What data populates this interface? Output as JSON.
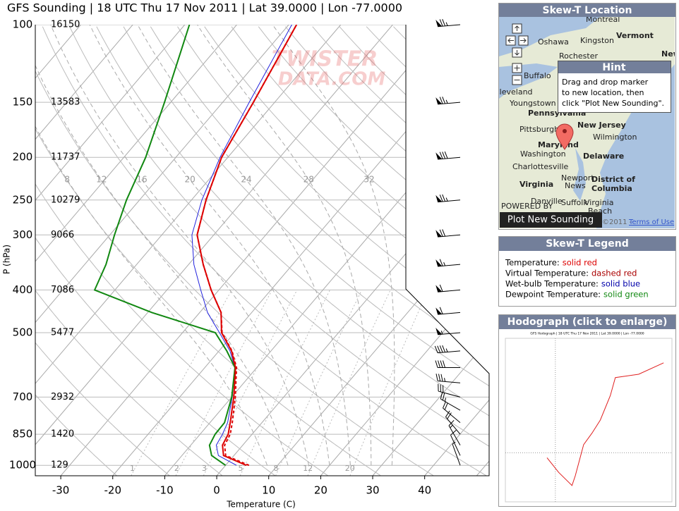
{
  "chart_data": {
    "type": "skewt",
    "title": "GFS Sounding | 18 UTC Thu 17 Nov 2011 | Lat 39.0000 | Lon -77.0000",
    "x_label": "Temperature (C)",
    "y_label": "P (hPa)",
    "xlim": [
      -34.9,
      52.4
    ],
    "xticks": [
      -30,
      -20,
      -10,
      0,
      10,
      20,
      30,
      40
    ],
    "ylim": [
      1056,
      100
    ],
    "yticks": [
      100,
      150,
      200,
      250,
      300,
      400,
      500,
      700,
      850,
      1000
    ],
    "height_labels": [
      16150,
      13583,
      11737,
      10279,
      9066,
      7086,
      5477,
      2932,
      1420,
      129
    ],
    "log_y": true,
    "grid": true,
    "pressure": [
      1000,
      950,
      900,
      850,
      800,
      700,
      600,
      550,
      500,
      450,
      400,
      350,
      300,
      250,
      200,
      150,
      100
    ],
    "series": [
      {
        "color": "#dd0000",
        "dashed": true,
        "values": [
          4.5,
          -1.6,
          -3.5,
          -4.2,
          -5.7,
          -9.3,
          -13.9,
          -17.5,
          -22.4,
          -25.9,
          -31.5,
          -37.2,
          -43.2,
          -47.2,
          -51.2,
          -54.1,
          -58.5
        ]
      },
      {
        "color": "#2222dd",
        "dashed": false,
        "values": [
          2.1,
          -3.0,
          -5.1,
          -5.7,
          -6.6,
          -9.9,
          -14.2,
          -17.9,
          -22.9,
          -28.5,
          -33.5,
          -39.0,
          -44.2,
          -48.0,
          -51.5,
          -54.9,
          -59.4
        ]
      },
      {
        "color": "#118811",
        "dashed": false,
        "values": [
          0,
          -4.3,
          -6.4,
          -7.1,
          -7.2,
          -10.0,
          -14.2,
          -18.5,
          -23.7,
          -39.2,
          -53.9,
          -55.9,
          -59.1,
          -62.5,
          -65.8,
          -71.2,
          -79.1
        ]
      },
      {
        "color": "#dd0000",
        "dashed": false,
        "values": [
          4.0,
          -2.0,
          -3.9,
          -4.6,
          -6.1,
          -9.6,
          -14.1,
          -17.6,
          -22.5,
          -25.9,
          -31.5,
          -37.2,
          -43.2,
          -47.2,
          -51.2,
          -54.1,
          -58.5
        ]
      }
    ],
    "mixing_ratio_labels": [
      1,
      2,
      3,
      5,
      8,
      12,
      20
    ],
    "moist_adiabat_labels": [
      8,
      12,
      16,
      20,
      24,
      28,
      32
    ],
    "winds": {
      "pressure": [
        100,
        150,
        200,
        250,
        300,
        350,
        400,
        450,
        500,
        550,
        600,
        650,
        700,
        750,
        800,
        850,
        900,
        950,
        1000
      ],
      "direction": [
        265,
        265,
        265,
        265,
        265,
        265,
        265,
        265,
        265,
        265,
        270,
        275,
        285,
        300,
        310,
        320,
        330,
        335,
        340
      ],
      "speed": [
        75,
        75,
        80,
        75,
        70,
        65,
        60,
        60,
        55,
        45,
        40,
        35,
        30,
        25,
        20,
        20,
        15,
        10,
        5
      ]
    },
    "watermark": [
      "TWISTER",
      "DATA.COM"
    ]
  },
  "location_panel": {
    "title": "Skew-T Location",
    "labels": [
      "Montreal",
      "Vermont",
      "Oshawa",
      "Kingston",
      "Rochester",
      "New",
      "Buffalo",
      "Cleveland",
      "Youngstown",
      "Pennsylvania",
      "Pittsburgh",
      "New Jersey",
      "Wilmington",
      "Maryland",
      "Washington",
      "Delaware",
      "Charlottesville",
      "District of",
      "Columbia",
      "Virginia",
      "Newport",
      "News",
      "Suffolk",
      "Virginia",
      "Beach",
      "Danville",
      "POWERED BY"
    ],
    "hint_title": "Hint",
    "hint_lines": [
      "Drag and drop marker",
      "to new location, then",
      "click \"Plot New Sounding\"."
    ],
    "button": "Plot New Sounding",
    "copyright": "©2011 -",
    "terms": "Terms of Use"
  },
  "legend_panel": {
    "title": "Skew-T Legend",
    "items": [
      {
        "label": "Temperature:",
        "style": "solid red",
        "color": "#dd0000"
      },
      {
        "label": "Virtual Temperature:",
        "style": "dashed red",
        "color": "#aa0000"
      },
      {
        "label": "Wet-bulb Temperature:",
        "style": "solid blue",
        "color": "#0000aa"
      },
      {
        "label": "Dewpoint Temperature:",
        "style": "solid green",
        "color": "#118811"
      }
    ]
  },
  "hodograph_panel": {
    "title": "Hodograph (click to enlarge)",
    "caption": "GFS Hodograph | 18 UTC Thu 17 Nov 2011 | Lat 39.0000 | Lon -77.0000",
    "xlim": [
      -30,
      70
    ],
    "ylim": [
      -30,
      70
    ],
    "u": [
      -5,
      2,
      8,
      10,
      12,
      17,
      22,
      27,
      33,
      36,
      50,
      65
    ],
    "v": [
      -3,
      -12,
      -18,
      -20,
      -14,
      5,
      12,
      20,
      35,
      46,
      48,
      55
    ]
  }
}
